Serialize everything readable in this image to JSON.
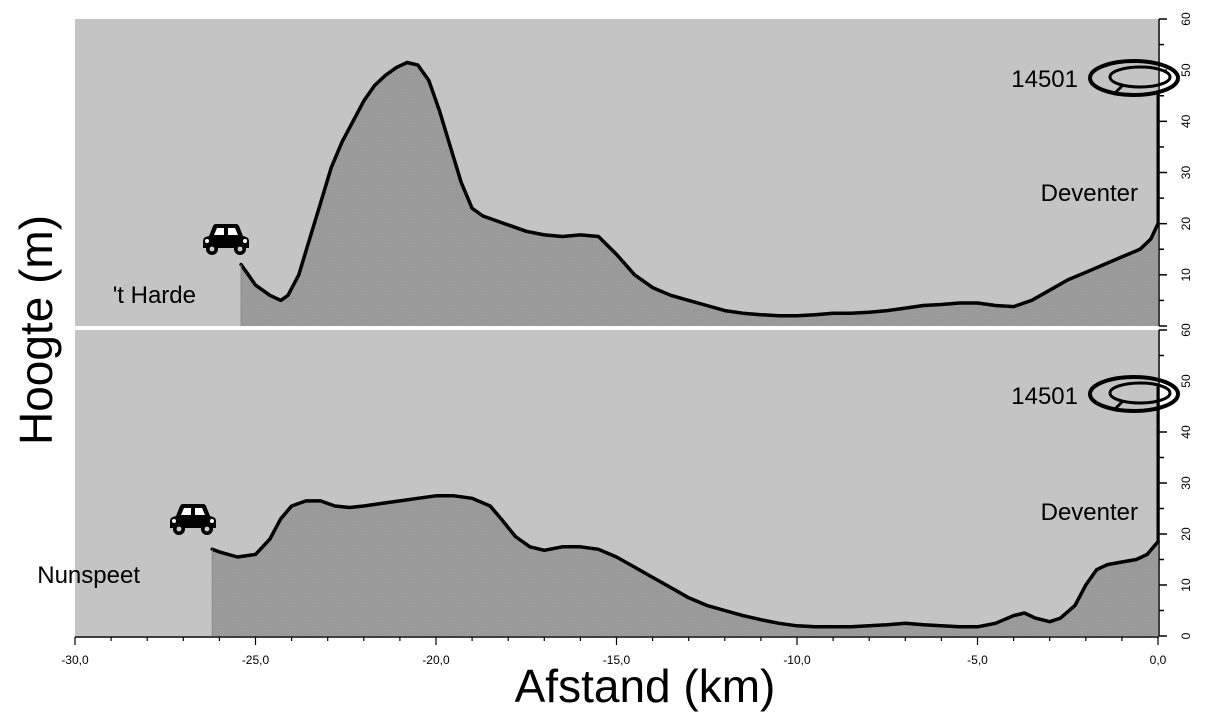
{
  "chart_data": {
    "type": "area",
    "ylabel": "Hoogte (m)",
    "xlabel": "Afstand (km)",
    "xlim": [
      -30,
      0
    ],
    "x_ticks": [
      "-30,0",
      "-25,0",
      "-20,0",
      "-15,0",
      "-10,0",
      "-5,0",
      "0,0"
    ],
    "x_tick_values": [
      -30,
      -25,
      -20,
      -15,
      -10,
      -5,
      0
    ],
    "ylim": [
      0,
      60
    ],
    "y_ticks_top": [
      "10",
      "20",
      "30",
      "40",
      "50",
      "60"
    ],
    "y_ticks_bottom": [
      "0",
      "10",
      "20",
      "30",
      "40",
      "50",
      "60"
    ],
    "y_tick_values_top": [
      10,
      20,
      30,
      40,
      50,
      60
    ],
    "y_tick_values_bottom": [
      0,
      10,
      20,
      30,
      40,
      50,
      60
    ],
    "grid": false,
    "colors": {
      "panel_background": "#c4c4c4",
      "terrain_fill": "#9e9e9e",
      "profile_line": "#000000",
      "page_background": "#ffffff"
    },
    "panels": [
      {
        "start_label": "'t Harde",
        "end_label": "Deventer",
        "station_label": "14501",
        "station_height": 46,
        "start_icon": "car-icon",
        "station_icon": "ring-icon",
        "x": [
          -25.4,
          -25.2,
          -25.0,
          -24.6,
          -24.3,
          -24.1,
          -23.8,
          -23.5,
          -23.2,
          -22.9,
          -22.6,
          -22.3,
          -22.0,
          -21.7,
          -21.4,
          -21.1,
          -20.8,
          -20.5,
          -20.2,
          -19.9,
          -19.6,
          -19.3,
          -19.0,
          -18.7,
          -18.3,
          -17.9,
          -17.5,
          -17.0,
          -16.5,
          -16.0,
          -15.5,
          -15.0,
          -14.5,
          -14.0,
          -13.5,
          -13.0,
          -12.5,
          -12.0,
          -11.5,
          -11.0,
          -10.5,
          -10.0,
          -9.5,
          -9.0,
          -8.5,
          -8.0,
          -7.5,
          -7.0,
          -6.5,
          -6.0,
          -5.5,
          -5.0,
          -4.5,
          -4.0,
          -3.5,
          -3.0,
          -2.5,
          -2.0,
          -1.5,
          -1.0,
          -0.5,
          -0.2,
          0.0
        ],
        "y": [
          12,
          10,
          8,
          6,
          5,
          6,
          10,
          17,
          24,
          31,
          36,
          40,
          44,
          47,
          49,
          50.5,
          51.5,
          51,
          48,
          42,
          35,
          28,
          23,
          21.5,
          20.5,
          19.5,
          18.5,
          17.8,
          17.5,
          17.8,
          17.5,
          14,
          10,
          7.5,
          6,
          5,
          4,
          3,
          2.5,
          2.2,
          2,
          2,
          2.2,
          2.5,
          2.5,
          2.7,
          3,
          3.5,
          4,
          4.2,
          4.5,
          4.5,
          4,
          3.8,
          5,
          7,
          9,
          10.5,
          12,
          13.5,
          15,
          17,
          20
        ]
      },
      {
        "start_label": "Nunspeet",
        "end_label": "Deventer",
        "station_label": "14501",
        "station_height": 49,
        "start_icon": "car-icon",
        "station_icon": "ring-icon",
        "x": [
          -26.2,
          -26.0,
          -25.5,
          -25.0,
          -24.6,
          -24.3,
          -24.0,
          -23.6,
          -23.2,
          -22.8,
          -22.4,
          -22.0,
          -21.5,
          -21.0,
          -20.5,
          -20.0,
          -19.5,
          -19.0,
          -18.5,
          -18.2,
          -17.8,
          -17.4,
          -17.0,
          -16.5,
          -16.0,
          -15.5,
          -15.0,
          -14.5,
          -14.0,
          -13.5,
          -13.0,
          -12.5,
          -12.0,
          -11.5,
          -11.0,
          -10.5,
          -10.0,
          -9.5,
          -9.0,
          -8.5,
          -8.0,
          -7.5,
          -7.0,
          -6.5,
          -6.0,
          -5.5,
          -5.0,
          -4.5,
          -4.0,
          -3.7,
          -3.4,
          -3.0,
          -2.7,
          -2.3,
          -2.0,
          -1.7,
          -1.4,
          -1.0,
          -0.6,
          -0.3,
          0.0
        ],
        "y": [
          17,
          16.5,
          15.5,
          16,
          19,
          23,
          25.5,
          26.5,
          26.5,
          25.5,
          25.2,
          25.5,
          26,
          26.5,
          27,
          27.5,
          27.5,
          27,
          25.5,
          23,
          19.5,
          17.5,
          16.8,
          17.5,
          17.5,
          17,
          15.5,
          13.5,
          11.5,
          9.5,
          7.5,
          6,
          5,
          4,
          3.2,
          2.5,
          2,
          1.8,
          1.8,
          1.8,
          2,
          2.2,
          2.5,
          2.2,
          2,
          1.8,
          1.8,
          2.5,
          4,
          4.5,
          3.5,
          2.8,
          3.5,
          6,
          10,
          13,
          14,
          14.5,
          15,
          16,
          18.5
        ]
      }
    ]
  }
}
